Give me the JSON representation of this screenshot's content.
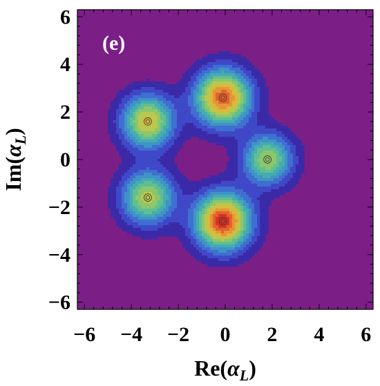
{
  "chart_data": {
    "type": "heatmap",
    "subtype": "contour",
    "panel_label": "(e)",
    "title": "",
    "xlabel": "Re(αL)",
    "ylabel": "Im(αL)",
    "xlim": [
      -6.3,
      6.3
    ],
    "ylim": [
      -6.3,
      6.3
    ],
    "x_ticks": [
      -6,
      -4,
      -2,
      0,
      2,
      4,
      6
    ],
    "y_ticks": [
      -6,
      -4,
      -2,
      0,
      2,
      4,
      6
    ],
    "tick_labels": [
      "−6",
      "−4",
      "−2",
      "0",
      "2",
      "4",
      "6"
    ],
    "grid": false,
    "background_color": "#7b1f86",
    "colormap": [
      "#3b2aa8",
      "#3f49c8",
      "#3f6fd0",
      "#3f93c8",
      "#45acb0",
      "#5fbf92",
      "#8cc66c",
      "#b9c84f",
      "#d9b93f",
      "#e69536",
      "#e4632c",
      "#d83124"
    ],
    "peaks": [
      {
        "x": -0.1,
        "y": 2.6,
        "height": 0.92,
        "width": 0.82
      },
      {
        "x": -3.3,
        "y": 1.6,
        "height": 0.72,
        "width": 0.78
      },
      {
        "x": 1.8,
        "y": 0.0,
        "height": 0.62,
        "width": 0.74
      },
      {
        "x": -3.3,
        "y": -1.6,
        "height": 0.66,
        "width": 0.78
      },
      {
        "x": -0.1,
        "y": -2.6,
        "height": 1.0,
        "width": 0.82
      }
    ]
  }
}
